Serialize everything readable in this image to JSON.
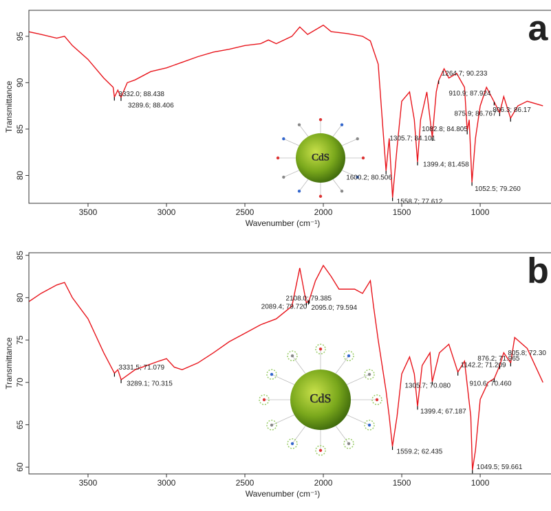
{
  "chart_data": [
    {
      "type": "line",
      "panel_label": "a",
      "xlabel": "Wavenumber (cm⁻¹)",
      "ylabel": "Transmittance",
      "inset_label": "CdS",
      "xlim": [
        3877,
        553
      ],
      "ylim": [
        77,
        97.8
      ],
      "xticks": [
        3500,
        3000,
        2500,
        2000,
        1500,
        1000
      ],
      "yticks": [
        80,
        85,
        90,
        95
      ],
      "series": [
        {
          "color": "#e8141b",
          "x": [
            3880,
            3800,
            3700,
            3650,
            3600,
            3500,
            3400,
            3340,
            3332,
            3310,
            3289.6,
            3250,
            3200,
            3100,
            3000,
            2900,
            2800,
            2700,
            2600,
            2500,
            2400,
            2350,
            2300,
            2200,
            2150,
            2100,
            2050,
            2000,
            1950,
            1850,
            1750,
            1700,
            1650,
            1620,
            1600.2,
            1580,
            1558.7,
            1530,
            1500,
            1450,
            1420,
            1399.4,
            1380,
            1340,
            1305.7,
            1280,
            1264.7,
            1230,
            1200,
            1150,
            1100,
            1082.8,
            1070,
            1052.5,
            1030,
            1000,
            960,
            910.9,
            875.9,
            850,
            806.3,
            760,
            700,
            600
          ],
          "values": [
            95.5,
            95.2,
            94.8,
            95.0,
            94.0,
            92.5,
            90.5,
            89.5,
            88.438,
            89.2,
            88.406,
            90.0,
            90.3,
            91.2,
            91.6,
            92.2,
            92.8,
            93.3,
            93.6,
            94.0,
            94.2,
            94.6,
            94.2,
            95.0,
            96.0,
            95.2,
            95.7,
            96.2,
            95.5,
            95.3,
            95.0,
            94.5,
            92.0,
            85.0,
            80.506,
            84.0,
            77.612,
            83.0,
            88.0,
            89.0,
            86.0,
            81.458,
            86.0,
            89.0,
            84.101,
            89.0,
            90.233,
            91.5,
            90.5,
            91.0,
            89.5,
            84.805,
            86.0,
            79.26,
            84.0,
            87.5,
            89.5,
            87.924,
            86.767,
            88.5,
            86.17,
            87.5,
            88.0,
            87.5
          ]
        }
      ],
      "annotations": [
        {
          "x": 3332.0,
          "y": 88.438,
          "label": "3332.0; 88.438"
        },
        {
          "x": 3289.6,
          "y": 88.406,
          "label": "3289.6; 88.406"
        },
        {
          "x": 1600.2,
          "y": 80.506,
          "label": "1600.2; 80.506"
        },
        {
          "x": 1558.7,
          "y": 77.612,
          "label": "1558.7; 77.612"
        },
        {
          "x": 1399.4,
          "y": 81.458,
          "label": "1399.4; 81.458"
        },
        {
          "x": 1305.7,
          "y": 84.101,
          "label": "1305.7; 84.101"
        },
        {
          "x": 1264.7,
          "y": 90.233,
          "label": "1264.7; 90.233"
        },
        {
          "x": 1082.8,
          "y": 84.805,
          "label": "1082.8; 84.805"
        },
        {
          "x": 1052.5,
          "y": 79.26,
          "label": "1052.5; 79.260"
        },
        {
          "x": 910.9,
          "y": 87.924,
          "label": "910.9; 87.924"
        },
        {
          "x": 875.9,
          "y": 86.767,
          "label": "875.9; 86.767"
        },
        {
          "x": 806.3,
          "y": 86.17,
          "label": "806.3; 86.17"
        }
      ]
    },
    {
      "type": "line",
      "panel_label": "b",
      "xlabel": "Wavenumber (cm⁻¹)",
      "ylabel": "Transmittance",
      "inset_label": "CdS",
      "xlim": [
        3877,
        553
      ],
      "ylim": [
        59.2,
        85.3
      ],
      "xticks": [
        3500,
        3000,
        2500,
        2000,
        1500,
        1000
      ],
      "yticks": [
        60,
        65,
        70,
        75,
        80,
        85
      ],
      "series": [
        {
          "color": "#e8141b",
          "x": [
            3880,
            3800,
            3700,
            3650,
            3600,
            3500,
            3400,
            3331.5,
            3310,
            3289.1,
            3200,
            3050,
            3000,
            2950,
            2900,
            2800,
            2700,
            2600,
            2500,
            2400,
            2300,
            2200,
            2150,
            2120,
            2108.0,
            2095.0,
            2089.4,
            2050,
            2000,
            1950,
            1900,
            1800,
            1750,
            1700,
            1680,
            1650,
            1600,
            1580,
            1559.2,
            1530,
            1500,
            1450,
            1420,
            1399.4,
            1370,
            1320,
            1305.7,
            1260,
            1200,
            1142.2,
            1100,
            1060,
            1049.5,
            1030,
            1000,
            950,
            910.6,
            876.2,
            850,
            805.8,
            780,
            700,
            600
          ],
          "values": [
            79.5,
            80.5,
            81.5,
            81.8,
            80.0,
            77.5,
            73.5,
            71.079,
            71.5,
            70.315,
            71.5,
            72.5,
            72.8,
            71.8,
            71.5,
            72.3,
            73.5,
            74.8,
            75.8,
            76.8,
            77.5,
            79.0,
            83.5,
            80.5,
            79.385,
            79.594,
            79.72,
            82.0,
            83.8,
            82.5,
            81.0,
            81.0,
            80.5,
            82.0,
            79.0,
            75.0,
            69.0,
            66.0,
            62.435,
            66.0,
            71.0,
            73.0,
            71.0,
            67.187,
            72.0,
            73.5,
            70.08,
            73.5,
            74.5,
            71.209,
            72.5,
            66.0,
            59.661,
            62.0,
            68.0,
            70.0,
            70.46,
            71.965,
            73.5,
            72.3,
            75.3,
            74.0,
            70.0
          ]
        }
      ],
      "annotations": [
        {
          "x": 3331.5,
          "y": 71.079,
          "label": "3331.5; 71.079"
        },
        {
          "x": 3289.1,
          "y": 70.315,
          "label": "3289.1; 70.315"
        },
        {
          "x": 2108.0,
          "y": 79.385,
          "label": "2108.0; 79.385"
        },
        {
          "x": 2089.4,
          "y": 79.72,
          "label": "2089.4; 79.720"
        },
        {
          "x": 2095.0,
          "y": 79.594,
          "label": "2095.0; 79.594"
        },
        {
          "x": 1559.2,
          "y": 62.435,
          "label": "1559.2; 62.435"
        },
        {
          "x": 1399.4,
          "y": 67.187,
          "label": "1399.4; 67.187"
        },
        {
          "x": 1305.7,
          "y": 70.08,
          "label": "1305.7; 70.080"
        },
        {
          "x": 1142.2,
          "y": 71.209,
          "label": "1142.2; 71.209"
        },
        {
          "x": 910.6,
          "y": 70.46,
          "label": "910.6; 70.460"
        },
        {
          "x": 1049.5,
          "y": 59.661,
          "label": "1049.5; 59.661"
        },
        {
          "x": 876.2,
          "y": 71.965,
          "label": "876.2; 71.965"
        },
        {
          "x": 805.8,
          "y": 72.3,
          "label": "805.8; 72.30"
        }
      ]
    }
  ]
}
